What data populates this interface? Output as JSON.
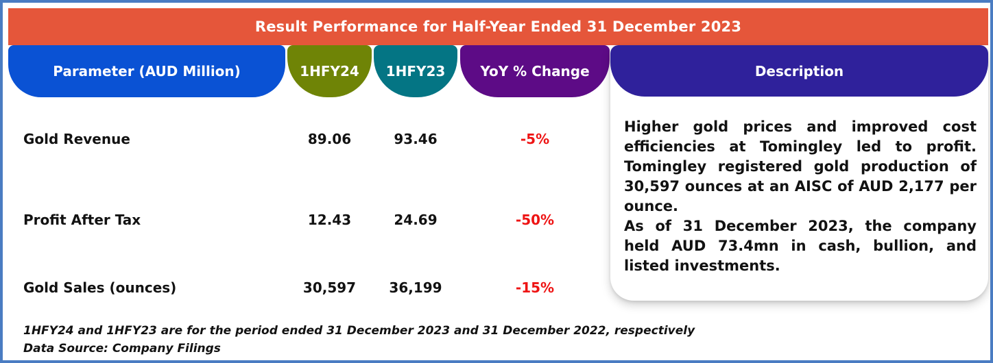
{
  "title": "Result Performance for Half-Year Ended 31 December 2023",
  "columns": {
    "parameter": "Parameter (AUD Million)",
    "hfy24": "1HFY24",
    "hfy23": "1HFY23",
    "yoy": "YoY % Change",
    "description": "Description"
  },
  "rows": [
    {
      "parameter": "Gold Revenue",
      "hfy24": "89.06",
      "hfy23": "93.46",
      "yoy": "-5%"
    },
    {
      "parameter": "Profit After Tax",
      "hfy24": "12.43",
      "hfy23": "24.69",
      "yoy": "-50%"
    },
    {
      "parameter": "Gold Sales (ounces)",
      "hfy24": "30,597",
      "hfy23": "36,199",
      "yoy": "-15%"
    }
  ],
  "description": {
    "para1": "Higher gold prices and improved cost efficiencies at Tomingley led to profit. Tomingley registered gold production of 30,597 ounces at an AISC of AUD 2,177 per ounce.",
    "para2": "As of 31 December 2023, the company held AUD 73.4mn in cash, bullion, and listed investments."
  },
  "footnotes": {
    "note1": "1HFY24 and 1HFY23 are for the period ended 31 December 2023 and 31 December 2022, respectively",
    "note2": "Data Source: Company Filings"
  },
  "colors": {
    "frame": "#4a7cc2",
    "banner": "#e5563a",
    "param": "#0a52d4",
    "hfy24": "#6f8406",
    "hfy23": "#047584",
    "yoy": "#5d0b86",
    "desc": "#2f219b",
    "red": "#ee1414",
    "text": "#121212"
  },
  "chart_data": {
    "type": "table",
    "title": "Result Performance for Half-Year Ended 31 December 2023",
    "columns": [
      "Parameter (AUD Million)",
      "1HFY24",
      "1HFY23",
      "YoY % Change"
    ],
    "rows": [
      [
        "Gold Revenue",
        89.06,
        93.46,
        "-5%"
      ],
      [
        "Profit After Tax",
        12.43,
        24.69,
        "-50%"
      ],
      [
        "Gold Sales (ounces)",
        30597,
        36199,
        "-15%"
      ]
    ],
    "description": "Higher gold prices and improved cost efficiencies at Tomingley led to profit. Tomingley registered gold production of 30,597 ounces at an AISC of AUD 2,177 per ounce. As of 31 December 2023, the company held AUD 73.4mn in cash, bullion, and listed investments.",
    "notes": [
      "1HFY24 and 1HFY23 are for the period ended 31 December 2023 and 31 December 2022, respectively",
      "Data Source: Company Filings"
    ]
  }
}
